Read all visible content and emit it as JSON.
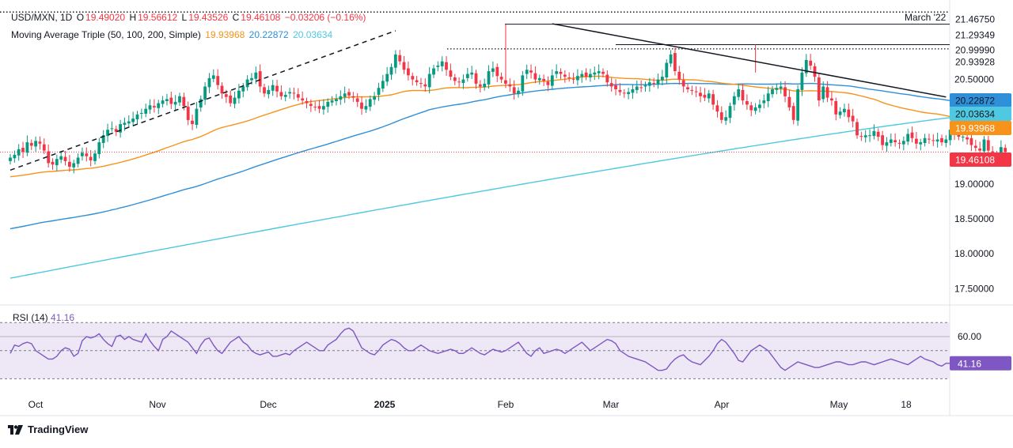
{
  "header": {
    "symbol": "USD/MXN, 1D",
    "o_label": "O",
    "o": "19.49020",
    "h_label": "H",
    "h": "19.56612",
    "l_label": "L",
    "l": "19.43526",
    "c_label": "C",
    "c": "19.46108",
    "change": "−0.03206 (−0.16%)",
    "ma_title": "Moving Average Triple (50, 100, 200, Simple)",
    "ma50": "19.93968",
    "ma100": "20.22872",
    "ma200": "20.03634",
    "date_mark": "March '22"
  },
  "rsi": {
    "title": "RSI (14)",
    "value": "41.16",
    "level_label": "60.00",
    "badge": "41.16"
  },
  "brand": {
    "name": "TradingView"
  },
  "colors": {
    "up": "#089981",
    "down": "#f23645",
    "ma50": "#f7931a",
    "ma100": "#2f8fd8",
    "ma200": "#4ec9e1",
    "rsi_line": "#7e57c2",
    "rsi_band": "#ede7f6"
  },
  "chart_data": {
    "type": "candlestick",
    "y_axis": {
      "ticks": [
        "21.46750",
        "21.29349",
        "20.99990",
        "20.93928",
        "20.50000",
        "20.22872",
        "20.03634",
        "19.93968",
        "19.46108",
        "19.00000",
        "18.50000",
        "18.00000",
        "17.50000"
      ],
      "range": [
        17.3,
        21.55
      ]
    },
    "x_axis": {
      "labels": [
        {
          "text": "Oct",
          "bold": false
        },
        {
          "text": "Nov",
          "bold": false
        },
        {
          "text": "Dec",
          "bold": false
        },
        {
          "text": "2025",
          "bold": true
        },
        {
          "text": "Feb",
          "bold": false
        },
        {
          "text": "Mar",
          "bold": false
        },
        {
          "text": "Apr",
          "bold": false
        },
        {
          "text": "May",
          "bold": false
        },
        {
          "text": "18",
          "bold": false
        }
      ]
    },
    "price_badges": [
      {
        "text": "21.46750",
        "kind": "plain"
      },
      {
        "text": "21.29349",
        "kind": "plain"
      },
      {
        "text": "20.99990",
        "kind": "plain"
      },
      {
        "text": "20.93928",
        "kind": "plain"
      },
      {
        "text": "20.22872",
        "kind": "ma100"
      },
      {
        "text": "20.03634",
        "kind": "ma200"
      },
      {
        "text": "19.93968",
        "kind": "ma50"
      },
      {
        "text": "19.46108",
        "kind": "last"
      }
    ],
    "horizontal_levels": [
      21.29349,
      20.9999,
      20.93928
    ],
    "top_dotted_level": 21.4675,
    "last_close": 19.46108,
    "trendlines": [
      {
        "style": "dashed",
        "from": {
          "bar": 0,
          "price": 19.2
        },
        "to": {
          "bar": 91,
          "price": 21.2
        }
      },
      {
        "style": "solid",
        "from": {
          "bar": 128,
          "price": 21.3
        },
        "to": {
          "bar": 221,
          "price": 20.25
        }
      }
    ],
    "candles_close": [
      19.38,
      19.42,
      19.5,
      19.46,
      19.6,
      19.55,
      19.62,
      19.58,
      19.48,
      19.3,
      19.28,
      19.36,
      19.4,
      19.33,
      19.25,
      19.3,
      19.38,
      19.45,
      19.4,
      19.34,
      19.44,
      19.6,
      19.7,
      19.78,
      19.8,
      19.75,
      19.86,
      19.88,
      19.9,
      19.94,
      20.0,
      20.02,
      20.08,
      20.13,
      20.1,
      20.16,
      20.2,
      20.22,
      20.15,
      20.18,
      20.26,
      20.12,
      19.92,
      19.86,
      20.08,
      20.22,
      20.4,
      20.52,
      20.56,
      20.42,
      20.3,
      20.25,
      20.16,
      20.24,
      20.34,
      20.4,
      20.5,
      20.52,
      20.6,
      20.4,
      20.3,
      20.35,
      20.42,
      20.33,
      20.26,
      20.28,
      20.32,
      20.3,
      20.24,
      20.2,
      20.16,
      20.12,
      20.1,
      20.08,
      20.12,
      20.18,
      20.2,
      20.22,
      20.26,
      20.3,
      20.27,
      20.24,
      20.18,
      20.08,
      20.12,
      20.22,
      20.26,
      20.38,
      20.48,
      20.58,
      20.68,
      20.86,
      20.76,
      20.64,
      20.56,
      20.5,
      20.46,
      20.44,
      20.4,
      20.58,
      20.66,
      20.7,
      20.76,
      20.64,
      20.54,
      20.48,
      20.46,
      20.5,
      20.58,
      20.6,
      20.44,
      20.4,
      20.44,
      20.62,
      20.66,
      20.55,
      20.5,
      20.44,
      20.4,
      20.3,
      20.34,
      20.56,
      20.64,
      20.6,
      20.5,
      20.52,
      20.48,
      20.42,
      20.56,
      20.62,
      20.58,
      20.54,
      20.52,
      20.5,
      20.55,
      20.58,
      20.54,
      20.58,
      20.6,
      20.62,
      20.58,
      20.46,
      20.4,
      20.36,
      20.32,
      20.3,
      20.32,
      20.36,
      20.4,
      20.38,
      20.42,
      20.46,
      20.44,
      20.5,
      20.54,
      20.74,
      20.86,
      20.62,
      20.5,
      20.4,
      20.36,
      20.34,
      20.32,
      20.26,
      20.24,
      20.3,
      20.14,
      20.04,
      19.92,
      19.96,
      20.12,
      20.26,
      20.36,
      20.2,
      20.14,
      20.06,
      20.1,
      20.14,
      20.2,
      20.3,
      20.36,
      20.38,
      20.4,
      20.26,
      20.1,
      19.92,
      20.36,
      20.6,
      20.78,
      20.7,
      20.54,
      20.2,
      20.4,
      20.24,
      20.2,
      20.0,
      20.04,
      20.08,
      19.96,
      19.9,
      19.7,
      19.68,
      19.7,
      19.7,
      19.76,
      19.68,
      19.56,
      19.6,
      19.64,
      19.6,
      19.58,
      19.62,
      19.72,
      19.66,
      19.58,
      19.6,
      19.66,
      19.64,
      19.62,
      19.64,
      19.6,
      19.64,
      19.78,
      19.72,
      19.68,
      19.68,
      19.64,
      19.56,
      19.52,
      19.48,
      19.64,
      19.48,
      19.4,
      19.38,
      19.53,
      19.46
    ],
    "rsi_values": [
      48,
      54,
      53,
      55,
      56,
      55,
      50,
      48,
      46,
      44,
      44,
      46,
      50,
      52,
      51,
      46,
      48,
      57,
      60,
      59,
      60,
      62,
      58,
      55,
      53,
      60,
      61,
      58,
      60,
      58,
      57,
      56,
      62,
      57,
      53,
      50,
      58,
      60,
      64,
      62,
      60,
      58,
      56,
      52,
      48,
      54,
      58,
      59,
      54,
      50,
      48,
      52,
      56,
      58,
      60,
      56,
      54,
      50,
      48,
      47,
      48,
      49,
      46,
      46,
      47,
      48,
      47,
      50,
      52,
      54,
      56,
      54,
      52,
      50,
      50,
      54,
      56,
      58,
      62,
      65,
      66,
      64,
      58,
      52,
      50,
      48,
      47,
      50,
      54,
      56,
      58,
      57,
      55,
      52,
      50,
      50,
      52,
      54,
      52,
      50,
      49,
      48,
      49,
      50,
      51,
      50,
      48,
      48,
      50,
      52,
      50,
      48,
      47,
      49,
      51,
      50,
      49,
      50,
      52,
      54,
      56,
      52,
      48,
      46,
      50,
      52,
      48,
      49,
      50,
      51,
      50,
      48,
      50,
      52,
      54,
      56,
      53,
      50,
      52,
      54,
      56,
      58,
      57,
      55,
      50,
      48,
      46,
      45,
      44,
      43,
      42,
      40,
      38,
      36,
      36,
      37,
      41,
      44,
      46,
      47,
      44,
      42,
      41,
      40,
      43,
      46,
      50,
      55,
      58,
      56,
      52,
      48,
      43,
      42,
      46,
      50,
      52,
      54,
      52,
      50,
      46,
      42,
      38,
      36,
      38,
      40,
      42,
      41,
      40,
      39,
      38,
      38,
      39,
      40,
      41,
      42,
      42,
      41,
      40,
      40,
      41,
      42,
      42,
      41,
      40,
      41,
      42,
      43,
      44,
      43,
      42,
      41,
      40,
      42,
      44,
      46,
      44,
      43,
      42,
      40,
      39,
      41,
      41,
      41
    ],
    "rsi_levels": [
      70,
      60,
      50,
      30
    ],
    "rsi_range": [
      24,
      78
    ]
  }
}
